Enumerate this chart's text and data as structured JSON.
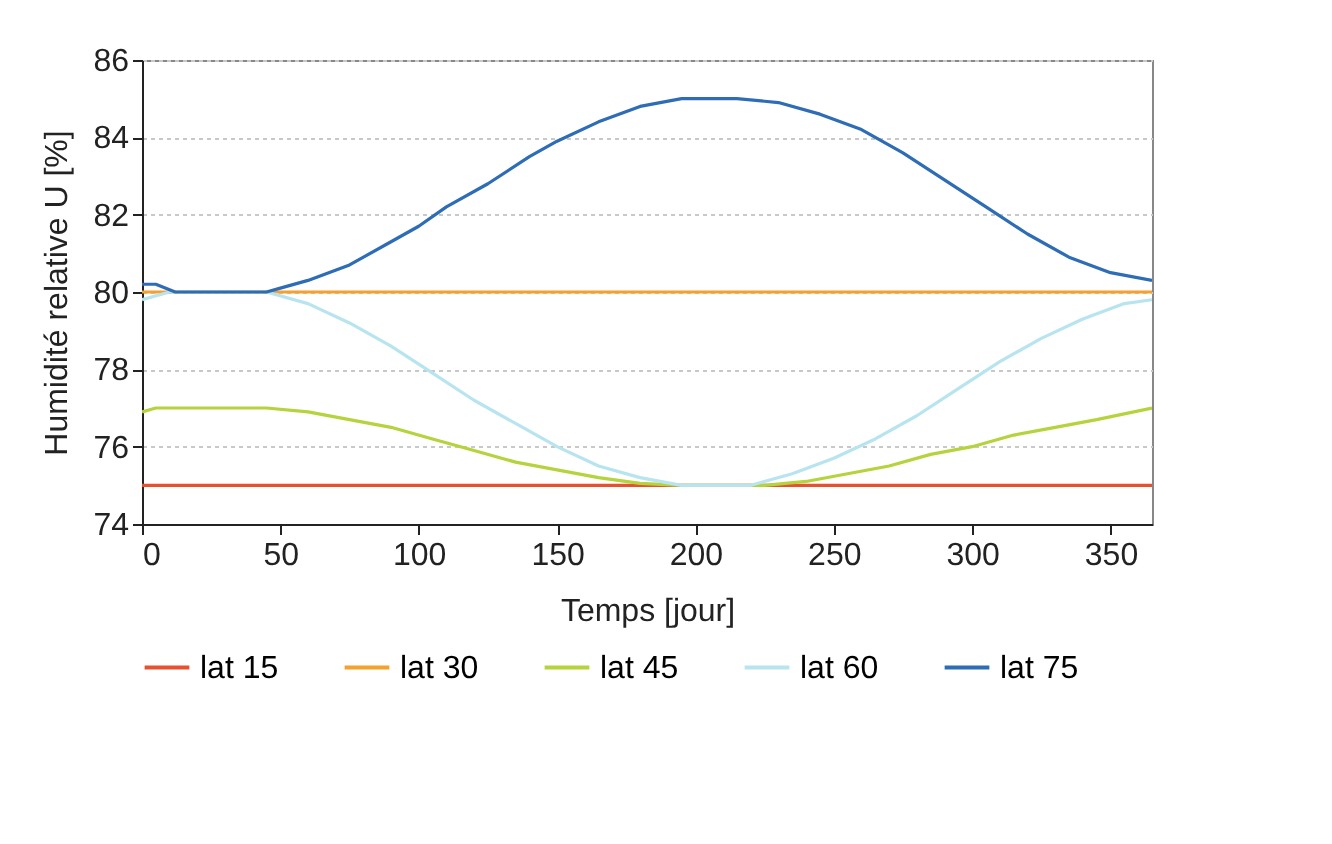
{
  "chart_data": {
    "type": "line",
    "xlabel": "Temps [jour]",
    "ylabel": "Humidité relative U [%]",
    "xlim": [
      0,
      365
    ],
    "xticks": [
      0,
      50,
      100,
      150,
      200,
      250,
      300,
      350
    ],
    "ylim": [
      74,
      86
    ],
    "yticks": [
      74,
      76,
      78,
      80,
      82,
      84,
      86
    ],
    "grid": "y",
    "legend": "bottom",
    "line_style": "solid",
    "series": [
      {
        "name": "lat 15",
        "color": "#e8502f",
        "x": [
          0,
          365
        ],
        "values": [
          75,
          75
        ]
      },
      {
        "name": "lat 30",
        "color": "#f5a030",
        "x": [
          0,
          365
        ],
        "values": [
          80,
          80
        ]
      },
      {
        "name": "lat 45",
        "color": "#b5d33c",
        "x": [
          0,
          5,
          45,
          60,
          75,
          90,
          105,
          120,
          135,
          150,
          165,
          180,
          195,
          225,
          240,
          255,
          270,
          285,
          300,
          315,
          330,
          345,
          365
        ],
        "values": [
          76.9,
          77,
          77,
          76.9,
          76.7,
          76.5,
          76.2,
          75.9,
          75.6,
          75.4,
          75.2,
          75.05,
          75,
          75,
          75.1,
          75.3,
          75.5,
          75.8,
          76,
          76.3,
          76.5,
          76.7,
          77
        ]
      },
      {
        "name": "lat 60",
        "color": "#b8e4f0",
        "x": [
          0,
          10,
          45,
          60,
          75,
          90,
          105,
          120,
          135,
          150,
          165,
          180,
          195,
          220,
          235,
          250,
          265,
          280,
          295,
          310,
          325,
          340,
          355,
          365
        ],
        "values": [
          79.8,
          80,
          80,
          79.7,
          79.2,
          78.6,
          77.9,
          77.2,
          76.6,
          76,
          75.5,
          75.2,
          75,
          75,
          75.3,
          75.7,
          76.2,
          76.8,
          77.5,
          78.2,
          78.8,
          79.3,
          79.7,
          79.8
        ]
      },
      {
        "name": "lat 75",
        "color": "#2e6db5",
        "x": [
          0,
          5,
          12,
          45,
          50,
          60,
          75,
          90,
          100,
          110,
          125,
          140,
          150,
          165,
          180,
          195,
          215,
          230,
          245,
          260,
          275,
          290,
          305,
          320,
          335,
          350,
          365
        ],
        "values": [
          80.2,
          80.2,
          80,
          80,
          80.1,
          80.3,
          80.7,
          81.3,
          81.7,
          82.2,
          82.8,
          83.5,
          83.9,
          84.4,
          84.8,
          85,
          85,
          84.9,
          84.6,
          84.2,
          83.6,
          82.9,
          82.2,
          81.5,
          80.9,
          80.5,
          80.3
        ]
      }
    ]
  }
}
